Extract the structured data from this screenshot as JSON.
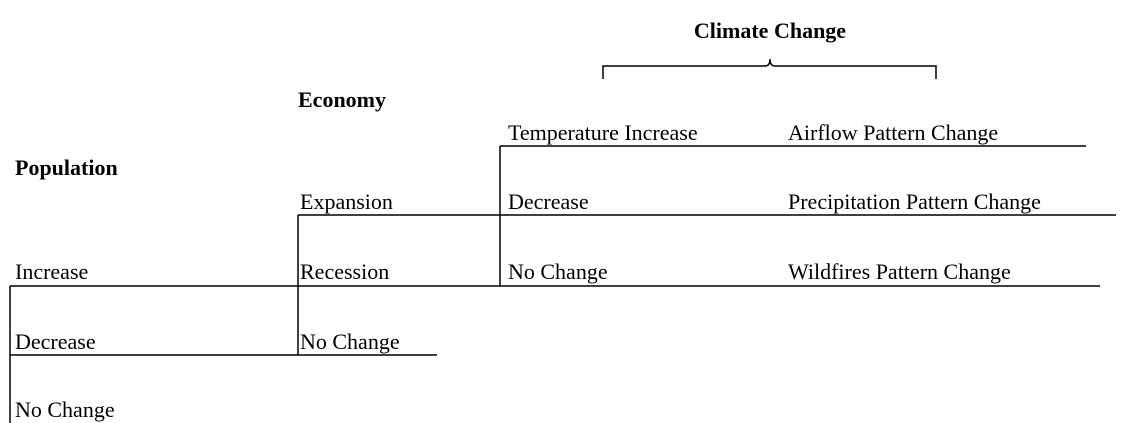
{
  "climate_change": {
    "title": "Climate Change",
    "temperature": [
      "Temperature Increase",
      "Decrease",
      "No Change"
    ],
    "patterns": [
      "Airflow Pattern Change",
      "Precipitation Pattern Change",
      "Wildfires Pattern Change"
    ]
  },
  "economy": {
    "title": "Economy",
    "items": [
      "Expansion",
      "Recession",
      "No Change"
    ]
  },
  "population": {
    "title": "Population",
    "items": [
      "Increase",
      "Decrease",
      "No Change"
    ]
  }
}
